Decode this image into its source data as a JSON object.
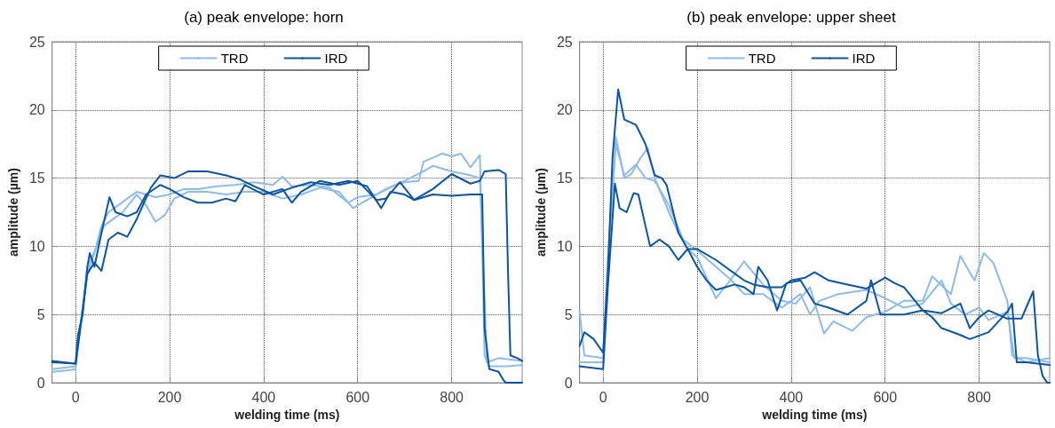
{
  "chart_data": [
    {
      "type": "line",
      "title": "(a) peak envelope: horn",
      "xlabel": "welding time (ms)",
      "ylabel": "amplitude (µm)",
      "xlim": [
        -50,
        950
      ],
      "ylim": [
        0,
        25
      ],
      "xticks": [
        0,
        200,
        400,
        600,
        800
      ],
      "yticks": [
        0,
        5,
        10,
        15,
        20,
        25
      ],
      "grid": true,
      "legend": "top",
      "line_style": "solid",
      "marker": "none",
      "series": [
        {
          "name": "TRD",
          "color": "#8fbbe8",
          "x": [
            -50,
            -20,
            0,
            5,
            15,
            25,
            40,
            55,
            70,
            90,
            110,
            130,
            150,
            170,
            200,
            230,
            260,
            300,
            340,
            380,
            400,
            420,
            440,
            460,
            500,
            540,
            580,
            600,
            640,
            680,
            700,
            730,
            740,
            760,
            780,
            800,
            820,
            840,
            860,
            865,
            870,
            880,
            920,
            950
          ],
          "values": [
            0.8,
            0.9,
            1.0,
            3,
            5.5,
            8,
            9.5,
            11.5,
            12.5,
            13,
            13.5,
            14,
            13.8,
            13.6,
            13.8,
            14.2,
            14.2,
            14.4,
            14.5,
            14.7,
            14.6,
            14.5,
            15.1,
            14.4,
            14.5,
            14.3,
            13.2,
            13.6,
            13.8,
            14.5,
            14.7,
            14.8,
            16.2,
            16.5,
            16.8,
            16.6,
            16.8,
            15.8,
            16.7,
            10,
            2,
            1.2,
            1.2,
            1.3
          ]
        },
        {
          "color": "#8fbbe8",
          "x": [
            -50,
            0,
            10,
            25,
            45,
            60,
            80,
            100,
            130,
            150,
            170,
            190,
            210,
            240,
            280,
            320,
            360,
            400,
            440,
            480,
            520,
            560,
            590,
            620,
            660,
            700,
            740,
            760,
            800,
            840,
            860,
            868,
            875,
            900,
            950
          ],
          "values": [
            1.0,
            1.2,
            4,
            8.5,
            10,
            11.5,
            12,
            12.5,
            13.8,
            13,
            11.8,
            12.3,
            13.5,
            14,
            14,
            13.8,
            14,
            14,
            13.5,
            13.8,
            14.3,
            14,
            12.8,
            13.4,
            14.2,
            14.8,
            15.5,
            15.9,
            15.5,
            15.2,
            15,
            8,
            1.5,
            1.8,
            1.6
          ]
        },
        {
          "name": "IRD",
          "color": "#0b55a3",
          "x": [
            -50,
            0,
            5,
            15,
            25,
            30,
            40,
            55,
            72,
            85,
            110,
            130,
            150,
            180,
            200,
            230,
            260,
            290,
            320,
            340,
            360,
            400,
            440,
            460,
            480,
            520,
            560,
            600,
            640,
            660,
            690,
            720,
            760,
            800,
            840,
            865,
            870,
            880,
            900,
            910,
            915,
            950
          ],
          "values": [
            1.6,
            1.4,
            3.5,
            5,
            8.5,
            9.5,
            8.5,
            11,
            13.6,
            12.5,
            12.2,
            12.5,
            13.8,
            14.5,
            14.2,
            13.6,
            13.2,
            13.2,
            13.5,
            13.3,
            14.5,
            13.8,
            14.2,
            13.2,
            14,
            14.8,
            14.5,
            14.8,
            13.4,
            13.5,
            14.7,
            13.4,
            13.8,
            13.7,
            13.8,
            13.8,
            4,
            1,
            0.8,
            0.2,
            0,
            0
          ]
        },
        {
          "color": "#0b55a3",
          "x": [
            -50,
            0,
            10,
            25,
            40,
            55,
            70,
            90,
            110,
            130,
            160,
            180,
            210,
            240,
            280,
            320,
            350,
            380,
            420,
            460,
            500,
            540,
            580,
            620,
            650,
            670,
            700,
            720,
            760,
            800,
            840,
            860,
            870,
            900,
            915,
            920,
            925,
            940,
            950
          ],
          "values": [
            1.5,
            1.4,
            4,
            8,
            8.8,
            8.2,
            10.5,
            11,
            10.7,
            12,
            14.3,
            15.2,
            15,
            15.5,
            15.5,
            15.2,
            14.9,
            14.4,
            13.8,
            14.3,
            14.7,
            14.5,
            14.8,
            14.4,
            12.8,
            14,
            13.8,
            13.4,
            14.2,
            15.3,
            14.6,
            14.8,
            15.5,
            15.6,
            15.3,
            8,
            2,
            1.8,
            1.6
          ]
        }
      ]
    },
    {
      "type": "line",
      "title": "(b) peak envelope: upper sheet",
      "xlabel": "welding time (ms)",
      "ylabel": "amplitude (µm)",
      "xlim": [
        -50,
        950
      ],
      "ylim": [
        0,
        25
      ],
      "xticks": [
        0,
        200,
        400,
        600,
        800
      ],
      "yticks": [
        0,
        5,
        10,
        15,
        20,
        25
      ],
      "grid": true,
      "legend": "top",
      "line_style": "solid",
      "marker": "none",
      "series": [
        {
          "name": "TRD",
          "color": "#8fbbe8",
          "x": [
            -50,
            -40,
            0,
            10,
            27,
            45,
            60,
            80,
            95,
            110,
            140,
            160,
            180,
            200,
            240,
            270,
            300,
            340,
            380,
            410,
            440,
            470,
            490,
            530,
            560,
            600,
            640,
            680,
            700,
            740,
            760,
            790,
            810,
            830,
            860,
            870,
            900,
            950
          ],
          "values": [
            5.2,
            2,
            1.8,
            9,
            18,
            15,
            15.3,
            16.5,
            17.2,
            15,
            12.5,
            11,
            9.8,
            9.2,
            6.2,
            7.5,
            8.9,
            7.2,
            6,
            5.8,
            7,
            3.6,
            4.5,
            3.8,
            4.8,
            5.2,
            6,
            6,
            7.8,
            6.5,
            9.3,
            7.5,
            9.5,
            8.8,
            6,
            2,
            1.5,
            1.8
          ]
        },
        {
          "color": "#8fbbe8",
          "x": [
            -50,
            0,
            10,
            27,
            45,
            70,
            90,
            110,
            140,
            170,
            200,
            240,
            270,
            300,
            340,
            380,
            420,
            440,
            460,
            500,
            560,
            600,
            640,
            680,
            720,
            740,
            770,
            800,
            820,
            860,
            875,
            900,
            950
          ],
          "values": [
            1.5,
            1.5,
            9,
            17.5,
            15.2,
            16,
            15,
            14.8,
            13,
            10.5,
            9.7,
            8.5,
            7.6,
            6.5,
            6.5,
            5.5,
            6.5,
            5,
            6,
            6.5,
            6.8,
            6.2,
            5.5,
            5.8,
            7.5,
            5.8,
            5,
            5.5,
            4.6,
            5.2,
            1.8,
            1.8,
            1.5
          ]
        },
        {
          "name": "IRD",
          "color": "#0b55a3",
          "x": [
            -50,
            -40,
            -20,
            0,
            10,
            20,
            32,
            45,
            70,
            90,
            110,
            125,
            135,
            160,
            180,
            200,
            240,
            280,
            300,
            320,
            350,
            380,
            400,
            430,
            450,
            480,
            520,
            560,
            600,
            620,
            640,
            680,
            720,
            760,
            780,
            800,
            820,
            860,
            890,
            900,
            915,
            925,
            935,
            945,
            950
          ],
          "values": [
            2.7,
            3.7,
            3.2,
            2.2,
            8,
            16.5,
            21.5,
            19.3,
            18.9,
            17.5,
            15.2,
            15,
            14.5,
            11,
            9.8,
            9.8,
            9,
            8,
            7.5,
            7.2,
            7,
            7,
            7.5,
            7.7,
            8.1,
            7.5,
            7.2,
            6.9,
            7.7,
            7.3,
            7,
            5.3,
            5.1,
            5.8,
            4,
            4.8,
            5.3,
            4.7,
            4.7,
            5.5,
            6.7,
            2,
            0.5,
            0,
            0
          ]
        },
        {
          "color": "#0b55a3",
          "x": [
            -50,
            0,
            10,
            25,
            35,
            50,
            65,
            75,
            90,
            100,
            120,
            140,
            160,
            180,
            200,
            220,
            240,
            260,
            280,
            300,
            320,
            330,
            350,
            370,
            390,
            420,
            450,
            480,
            520,
            560,
            570,
            590,
            640,
            680,
            700,
            720,
            760,
            780,
            820,
            860,
            870,
            880,
            900,
            950
          ],
          "values": [
            1.2,
            1.0,
            7,
            14.6,
            12.8,
            12.5,
            13.9,
            13.8,
            11.5,
            10,
            10.5,
            10,
            9,
            9.8,
            8.5,
            7.5,
            6.8,
            7,
            7.2,
            7,
            6.5,
            8.5,
            7.5,
            5.3,
            7.3,
            7.5,
            5.8,
            5.5,
            5,
            6,
            7.5,
            5,
            5,
            5.3,
            4.8,
            4,
            3.5,
            3.2,
            3.7,
            5.2,
            5.8,
            1.5,
            1.5,
            1.3
          ]
        }
      ]
    }
  ]
}
